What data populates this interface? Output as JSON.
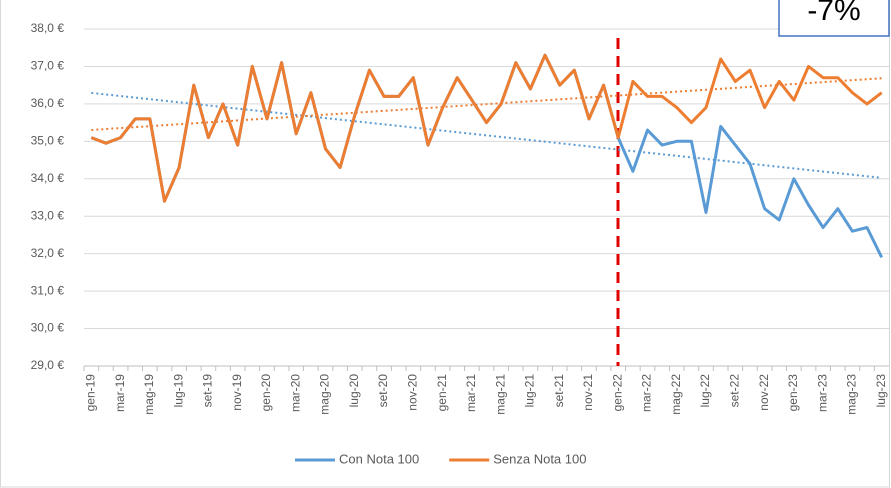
{
  "chart_data": {
    "type": "line",
    "annotation": "-7%",
    "categories": [
      "gen-19",
      null,
      "mar-19",
      null,
      "mag-19",
      null,
      "lug-19",
      null,
      "set-19",
      null,
      "nov-19",
      null,
      "gen-20",
      null,
      "mar-20",
      null,
      "mag-20",
      null,
      "lug-20",
      null,
      "set-20",
      null,
      "nov-20",
      null,
      "gen-21",
      null,
      "mar-21",
      null,
      "mag-21",
      null,
      "lug-21",
      null,
      "set-21",
      null,
      "nov-21",
      null,
      "gen-22",
      null,
      "mar-22",
      null,
      "mag-22",
      null,
      "lug-22",
      null,
      "set-22",
      null,
      "nov-22",
      null,
      "gen-23",
      null,
      "mar-23",
      null,
      "mag-23",
      null,
      "lug-23"
    ],
    "series": [
      {
        "name": "Con Nota 100",
        "color": "#5b9bd5",
        "values": [
          35.1,
          34.95,
          35.1,
          35.6,
          35.6,
          33.4,
          34.3,
          36.5,
          35.1,
          36.0,
          34.9,
          37.0,
          35.6,
          37.1,
          35.2,
          36.3,
          34.8,
          34.3,
          35.7,
          36.9,
          36.2,
          36.2,
          36.7,
          34.9,
          35.9,
          36.7,
          36.1,
          35.5,
          36.0,
          37.1,
          36.4,
          37.3,
          36.5,
          36.9,
          35.6,
          36.5,
          35.1,
          34.2,
          35.3,
          34.9,
          35.0,
          35.0,
          33.1,
          35.4,
          34.9,
          34.4,
          33.2,
          32.9,
          34.0,
          33.3,
          32.7,
          33.2,
          32.6,
          32.7,
          31.9
        ]
      },
      {
        "name": "Senza Nota 100",
        "color": "#ed7d31",
        "values": [
          35.1,
          34.95,
          35.1,
          35.6,
          35.6,
          33.4,
          34.3,
          36.5,
          35.1,
          36.0,
          34.9,
          37.0,
          35.6,
          37.1,
          35.2,
          36.3,
          34.8,
          34.3,
          35.7,
          36.9,
          36.2,
          36.2,
          36.7,
          34.9,
          35.9,
          36.7,
          36.1,
          35.5,
          36.0,
          37.1,
          36.4,
          37.3,
          36.5,
          36.9,
          35.6,
          36.5,
          35.1,
          36.6,
          36.2,
          36.2,
          35.9,
          35.5,
          35.9,
          37.2,
          36.6,
          36.9,
          35.9,
          36.6,
          36.1,
          37.0,
          36.7,
          36.7,
          36.3,
          36.0,
          36.3
        ]
      }
    ],
    "trendline": true,
    "ylim": [
      29,
      38
    ],
    "yticks": [
      {
        "value": 29,
        "label": "29,0 €"
      },
      {
        "value": 30,
        "label": "30,0 €"
      },
      {
        "value": 31,
        "label": "31,0 €"
      },
      {
        "value": 32,
        "label": "32,0 €"
      },
      {
        "value": 33,
        "label": "33,0 €"
      },
      {
        "value": 34,
        "label": "34,0 €"
      },
      {
        "value": 35,
        "label": "35,0 €"
      },
      {
        "value": 36,
        "label": "36,0 €"
      },
      {
        "value": 37,
        "label": "37,0 €"
      },
      {
        "value": 38,
        "label": "38,0 €"
      }
    ],
    "grid": true
  }
}
